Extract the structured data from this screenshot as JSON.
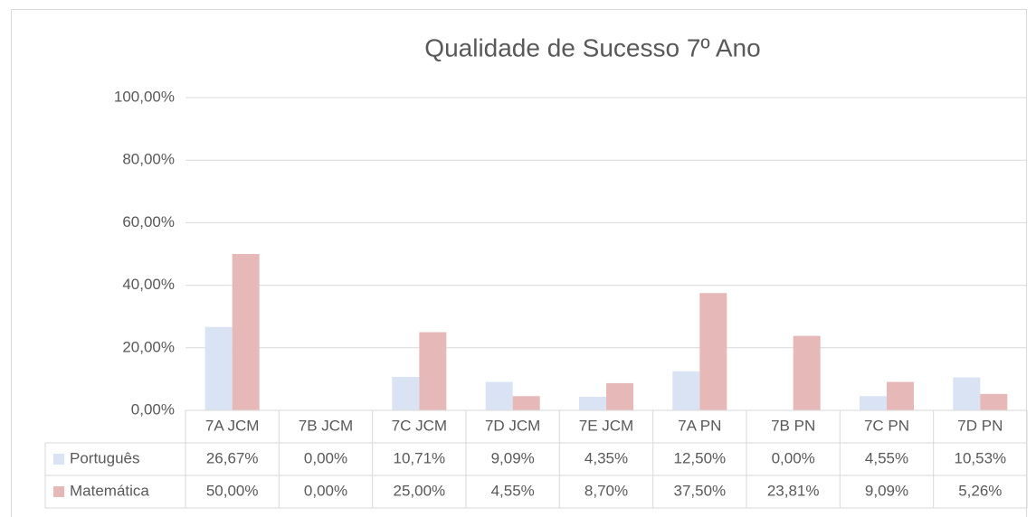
{
  "chart_data": {
    "type": "bar",
    "title": "Qualidade de Sucesso 7º Ano",
    "categories": [
      "7A JCM",
      "7B JCM",
      "7C JCM",
      "7D JCM",
      "7E JCM",
      "7A PN",
      "7B PN",
      "7C PN",
      "7D PN"
    ],
    "series": [
      {
        "name": "Português",
        "color": "#dae3f3",
        "values": [
          26.67,
          0,
          10.71,
          9.09,
          4.35,
          12.5,
          0,
          4.55,
          10.53
        ],
        "value_labels": [
          "26,67%",
          "0,00%",
          "10,71%",
          "9,09%",
          "4,35%",
          "12,50%",
          "0,00%",
          "4,55%",
          "10,53%"
        ]
      },
      {
        "name": "Matemática",
        "color": "#e6b9b8",
        "values": [
          50,
          0,
          25,
          4.55,
          8.7,
          37.5,
          23.81,
          9.09,
          5.26
        ],
        "value_labels": [
          "50,00%",
          "0,00%",
          "25,00%",
          "4,55%",
          "8,70%",
          "37,50%",
          "23,81%",
          "9,09%",
          "5,26%"
        ]
      }
    ],
    "ylim": [
      0,
      100
    ],
    "yticks": [
      {
        "value": 0,
        "label": "0,00%"
      },
      {
        "value": 20,
        "label": "20,00%"
      },
      {
        "value": 40,
        "label": "40,00%"
      },
      {
        "value": 60,
        "label": "60,00%"
      },
      {
        "value": 80,
        "label": "80,00%"
      },
      {
        "value": 100,
        "label": "100,00%"
      }
    ],
    "grid": true
  }
}
